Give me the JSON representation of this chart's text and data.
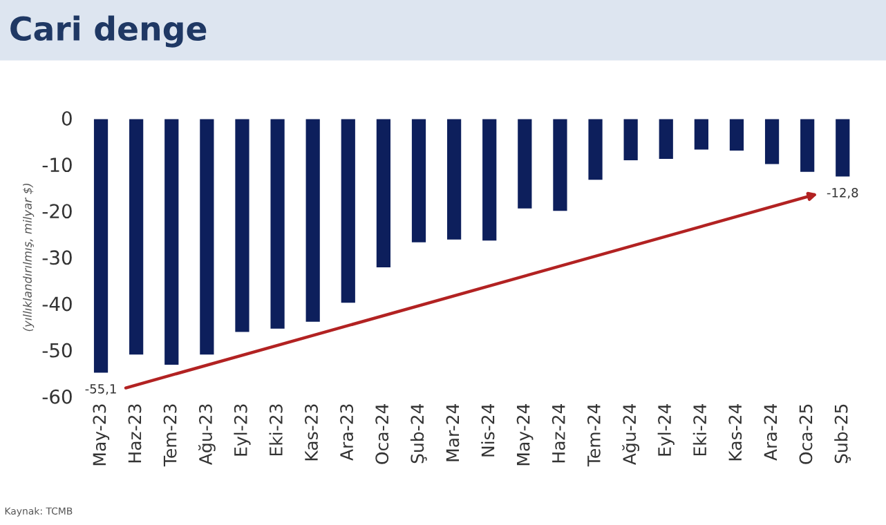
{
  "chart_data": {
    "type": "bar",
    "title": "Cari denge",
    "ylabel": "(yıllıklandırılmış, milyar $)",
    "categories": [
      "May-23",
      "Haz-23",
      "Tem-23",
      "Ağu-23",
      "Eyl-23",
      "Eki-23",
      "Kas-23",
      "Ara-23",
      "Oca-24",
      "Şub-24",
      "Mar-24",
      "Nis-24",
      "May-24",
      "Haz-24",
      "Tem-24",
      "Ağu-24",
      "Eyl-24",
      "Eki-24",
      "Kas-24",
      "Ara-24",
      "Oca-25",
      "Şub-25"
    ],
    "values": [
      -55.1,
      -51.2,
      -53.4,
      -51.2,
      -46.3,
      -45.6,
      -44.1,
      -40.0,
      -32.4,
      -27.0,
      -26.4,
      -26.6,
      -19.7,
      -20.2,
      -13.5,
      -9.3,
      -9.0,
      -7.0,
      -7.2,
      -10.1,
      -11.8,
      -12.8
    ],
    "color": "#0d1f5c",
    "ylim": [
      -60,
      0
    ],
    "yticks": [
      -60,
      -50,
      -40,
      -30,
      -20,
      -10,
      0
    ],
    "grid": false,
    "annotations": [
      {
        "text": "-55,1",
        "x": "May-23",
        "y": -55.1
      },
      {
        "text": "-12,8",
        "x": "Şub-25",
        "y": -12.8
      },
      "Kaynak: TCMB"
    ]
  }
}
